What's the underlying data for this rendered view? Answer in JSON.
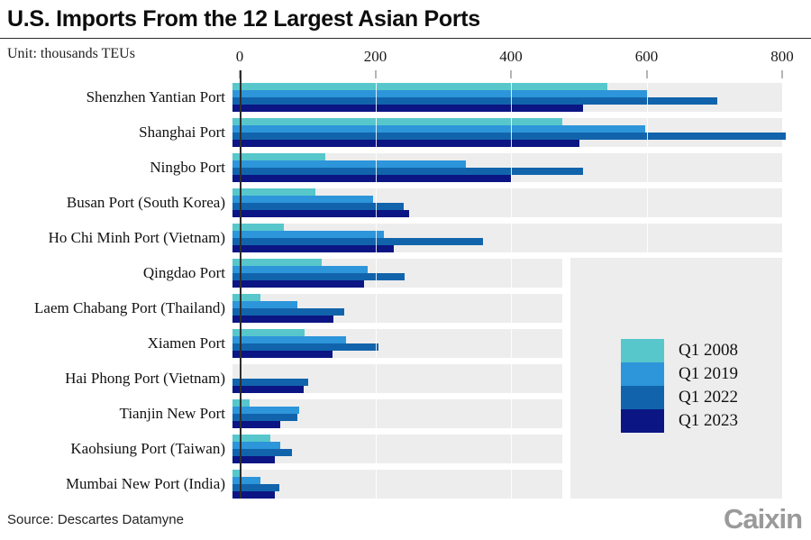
{
  "header": {
    "title": "U.S. Imports From the 12 Largest Asian Ports",
    "unit_label": "Unit: thousands TEUs"
  },
  "footer": {
    "source": "Source: Descartes Datamyne",
    "brand": "Caixin"
  },
  "colors": {
    "q1_2008": "#57c7cb",
    "q1_2019": "#2d95da",
    "q1_2022": "#1164ab",
    "q1_2023": "#0b1583",
    "row_band": "#ededed"
  },
  "chart_data": {
    "type": "bar",
    "orientation": "horizontal",
    "title": "U.S. Imports From the 12 Largest Asian Ports",
    "unit": "thousands TEUs",
    "xlabel": "",
    "ylabel": "",
    "x_axis": {
      "ticks": [
        0,
        200,
        400,
        600,
        800
      ],
      "min": 0,
      "max": 800,
      "grid": true
    },
    "legend_position": "right-middle",
    "categories": [
      "Shenzhen Yantian Port",
      "Shanghai Port",
      "Ningbo Port",
      "Busan Port (South Korea)",
      "Ho Chi Minh Port (Vietnam)",
      "Qingdao Port",
      "Laem Chabang Port (Thailand)",
      "Xiamen Port",
      "Hai Phong Port (Vietnam)",
      "Tianjin New Port",
      "Kaohsiung Port (Taiwan)",
      "Mumbai New Port (India)"
    ],
    "series": [
      {
        "name": "Q1 2008",
        "color": "#57c7cb",
        "values": [
          545,
          480,
          135,
          120,
          75,
          130,
          40,
          105,
          0,
          25,
          55,
          10
        ]
      },
      {
        "name": "Q1 2019",
        "color": "#2d95da",
        "values": [
          605,
          600,
          340,
          205,
          220,
          197,
          95,
          165,
          0,
          97,
          69,
          41
        ]
      },
      {
        "name": "Q1 2022",
        "color": "#1164ab",
        "values": [
          705,
          805,
          510,
          249,
          365,
          251,
          162,
          213,
          110,
          94,
          86,
          68
        ]
      },
      {
        "name": "Q1 2023",
        "color": "#0b1583",
        "values": [
          510,
          505,
          405,
          257,
          235,
          191,
          147,
          145,
          103,
          70,
          62,
          62
        ]
      }
    ],
    "band_full_width_rows": 5
  }
}
